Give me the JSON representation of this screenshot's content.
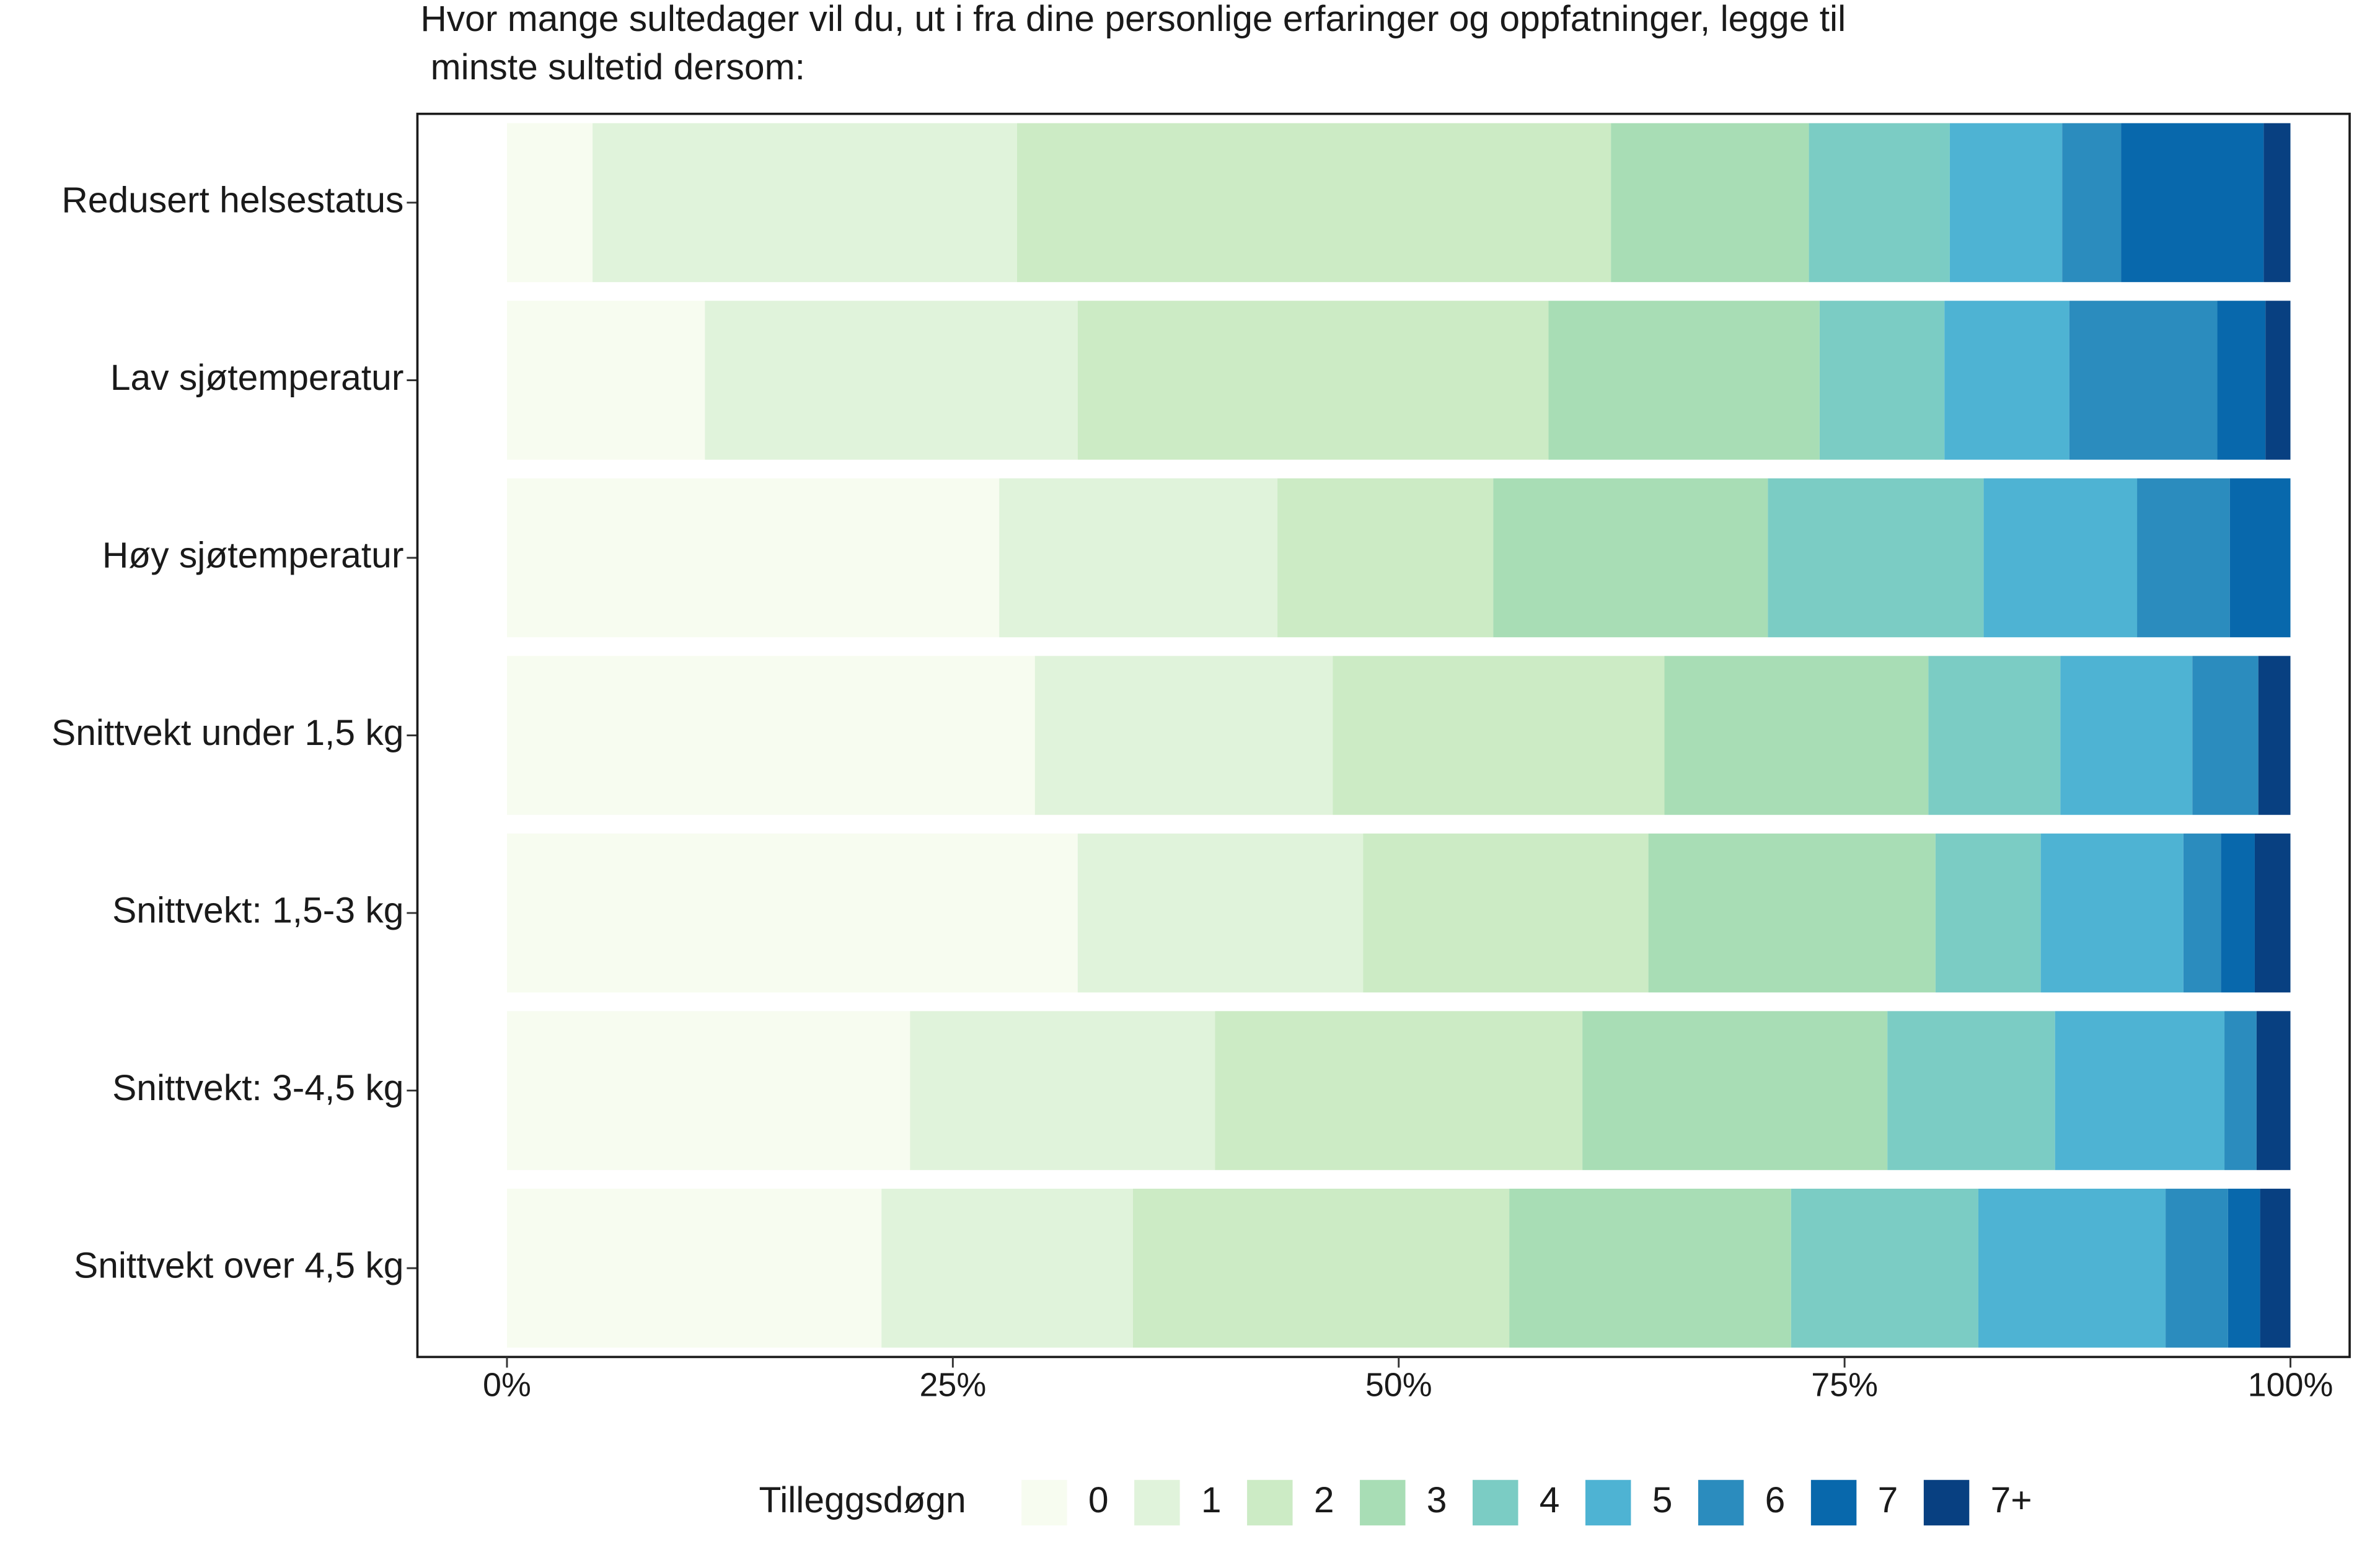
{
  "chart_data": {
    "type": "stacked-bar-horizontal",
    "title": [
      "Hvor mange sultedager vil du, ut i fra dine personlige erfaringer og oppfatninger, legge til",
      " minste sultetid dersom:"
    ],
    "legend_title": "Tilleggsdøgn",
    "legend_position": "bottom",
    "categories": [
      "Redusert helsestatus",
      "Lav sjøtemperatur",
      "Høy sjøtemperatur",
      "Snittvekt under 1,5 kg",
      "Snittvekt: 1,5-3 kg",
      "Snittvekt: 3-4,5 kg",
      "Snittvekt over 4,5 kg"
    ],
    "xlim": [
      0,
      100
    ],
    "xticks": [
      {
        "value": 0,
        "label": "0%"
      },
      {
        "value": 25,
        "label": "25%"
      },
      {
        "value": 50,
        "label": "50%"
      },
      {
        "value": 75,
        "label": "75%"
      },
      {
        "value": 100,
        "label": "100%"
      }
    ],
    "series": [
      {
        "name": "0",
        "color": "#f7fcf0",
        "values": [
          4.8,
          11.1,
          27.6,
          29.6,
          32.0,
          22.6,
          21.0
        ]
      },
      {
        "name": "1",
        "color": "#e0f3db",
        "values": [
          23.8,
          20.9,
          15.6,
          16.7,
          16.0,
          17.1,
          14.1
        ]
      },
      {
        "name": "2",
        "color": "#ccebc5",
        "values": [
          33.3,
          26.4,
          12.1,
          18.6,
          16.0,
          20.6,
          21.1
        ]
      },
      {
        "name": "3",
        "color": "#a8ddb5",
        "values": [
          11.1,
          15.2,
          15.4,
          14.8,
          16.1,
          17.1,
          15.8
        ]
      },
      {
        "name": "4",
        "color": "#7bccc4",
        "values": [
          7.9,
          7.0,
          12.1,
          7.4,
          5.9,
          9.4,
          10.5
        ]
      },
      {
        "name": "5",
        "color": "#4eb3d3",
        "values": [
          6.3,
          7.0,
          8.6,
          7.4,
          8.0,
          9.5,
          10.5
        ]
      },
      {
        "name": "6",
        "color": "#2b8cbe",
        "values": [
          3.3,
          8.3,
          5.2,
          3.7,
          2.1,
          1.8,
          3.5
        ]
      },
      {
        "name": "7",
        "color": "#0868ac",
        "values": [
          8.0,
          2.7,
          3.4,
          0,
          1.9,
          0,
          1.8
        ]
      },
      {
        "name": "7+",
        "color": "#084081",
        "values": [
          1.5,
          1.4,
          0,
          1.8,
          2.0,
          1.9,
          1.7
        ]
      }
    ]
  }
}
